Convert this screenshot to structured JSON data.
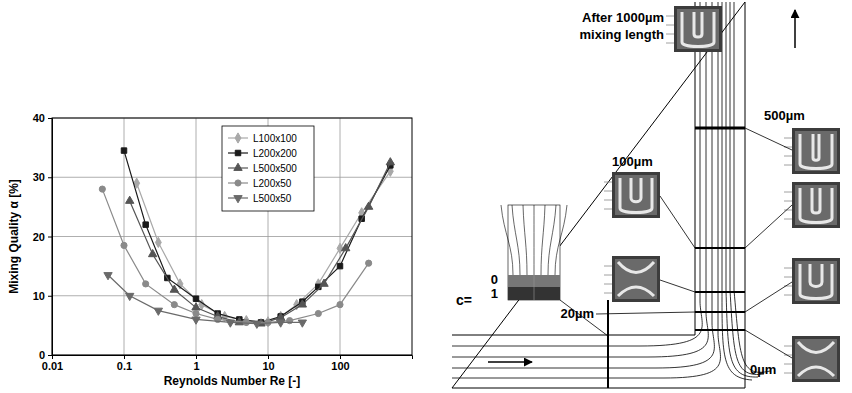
{
  "chart_data": {
    "type": "line",
    "x_label": "Reynolds Number Re [-]",
    "y_label": "Mixing Quality α [%]",
    "log": "x",
    "xlim": [
      0.01,
      1000
    ],
    "xticks": [
      0.01,
      0.1,
      1,
      10,
      100
    ],
    "ylim": [
      0,
      40
    ],
    "yticks": [
      0,
      10,
      20,
      30,
      40
    ],
    "grid": true,
    "legend": "upper center",
    "series": [
      {
        "name": "L100x100",
        "color": "#a8a8a8",
        "marker": "diamond",
        "x": [
          0.15,
          0.3,
          0.6,
          1.2,
          2.5,
          5,
          10,
          15,
          25,
          50,
          100,
          200,
          500
        ],
        "values": [
          29,
          19,
          12,
          8.5,
          6.5,
          5.8,
          5.6,
          6.5,
          8.5,
          12,
          18,
          24,
          31
        ]
      },
      {
        "name": "L200x200",
        "color": "#1a1a1a",
        "marker": "square",
        "x": [
          0.1,
          0.2,
          0.4,
          1,
          2,
          4,
          8,
          15,
          30,
          50,
          100,
          200,
          500
        ],
        "values": [
          34.5,
          22,
          13,
          9.5,
          7,
          6,
          5.5,
          6.5,
          9,
          11.5,
          15,
          23,
          32
        ]
      },
      {
        "name": "L500x500",
        "color": "#555555",
        "marker": "triangle",
        "x": [
          0.12,
          0.25,
          0.5,
          1,
          2,
          4,
          8,
          15,
          30,
          60,
          120,
          250,
          500
        ],
        "values": [
          26,
          17,
          11,
          8,
          6.5,
          5.5,
          5.3,
          6.3,
          8.5,
          12,
          18,
          25,
          32.5
        ]
      },
      {
        "name": "L200x50",
        "color": "#8a8a8a",
        "marker": "circle",
        "x": [
          0.05,
          0.1,
          0.2,
          0.5,
          1,
          2,
          5,
          10,
          20,
          50,
          100,
          250
        ],
        "values": [
          28,
          18.5,
          12,
          8.5,
          7,
          6,
          5.5,
          5.5,
          5.8,
          7,
          8.5,
          15.5
        ]
      },
      {
        "name": "L500x50",
        "color": "#6a6a6a",
        "marker": "triangle-down",
        "x": [
          0.06,
          0.12,
          0.3,
          1,
          3,
          7,
          15,
          30
        ],
        "values": [
          13.5,
          10,
          7.5,
          6,
          5.5,
          5.3,
          5.5,
          5.5
        ]
      }
    ]
  },
  "diagram": {
    "mixing_length_label": [
      "After 1000µm",
      "mixing length"
    ],
    "position_labels": [
      "500µm",
      "100µm",
      "20µm",
      "0µm"
    ],
    "concentration_label": "c=",
    "concentration_values": [
      0,
      1
    ]
  }
}
